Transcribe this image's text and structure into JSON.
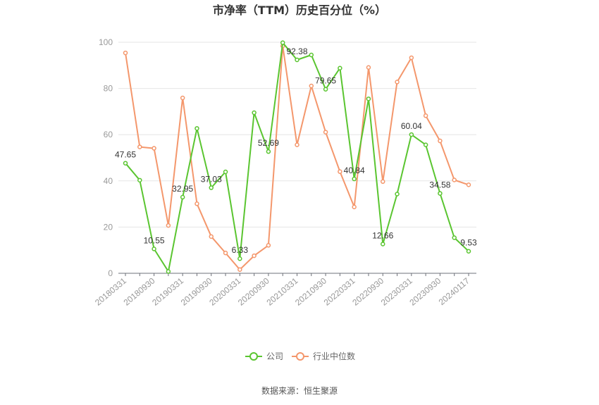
{
  "chart_data": {
    "type": "line",
    "title": "市净率（TTM）历史百分位（%）",
    "ylim": [
      0,
      100
    ],
    "yticks": [
      "0",
      "20",
      "40",
      "60",
      "80",
      "100"
    ],
    "grid": true,
    "legend_position": "bottom",
    "x": [
      "20180331",
      "20180630",
      "20180930",
      "20181231",
      "20190331",
      "20190630",
      "20190930",
      "20191231",
      "20200331",
      "20200630",
      "20200930",
      "20201231",
      "20210331",
      "20210630",
      "20210930",
      "20211231",
      "20220331",
      "20220630",
      "20220930",
      "20221231",
      "20230331",
      "20230630",
      "20230930",
      "20231231",
      "20240117"
    ],
    "x_tick_labels": [
      "20180331",
      "20180930",
      "20190331",
      "20190930",
      "20200331",
      "20200930",
      "20210331",
      "20210930",
      "20220331",
      "20220930",
      "20230331",
      "20230930",
      "20240117"
    ],
    "series": [
      {
        "name": "公司",
        "color": "#5ac530",
        "values": [
          47.65,
          40.3,
          10.55,
          0.8,
          32.95,
          62.7,
          37.03,
          43.9,
          6.33,
          69.5,
          52.69,
          99.8,
          92.38,
          94.5,
          79.65,
          88.8,
          40.84,
          75.5,
          12.66,
          34.3,
          60.04,
          55.6,
          34.58,
          15.4,
          9.53
        ],
        "labels": {
          "0": "47.65",
          "2": "10.55",
          "4": "32.95",
          "6": "37.03",
          "8": "6.33",
          "10": "52.69",
          "12": "92.38",
          "14": "79.65",
          "16": "40.84",
          "18": "12.66",
          "20": "60.04",
          "22": "34.58",
          "24": "9.53"
        }
      },
      {
        "name": "行业中位数",
        "color": "#f4976c",
        "values": [
          95.4,
          54.7,
          54.1,
          20.7,
          75.9,
          30.1,
          15.9,
          8.8,
          1.6,
          7.6,
          12.1,
          98.4,
          55.6,
          81.1,
          61.1,
          44.0,
          28.7,
          89.1,
          39.7,
          82.8,
          93.3,
          68.2,
          57.3,
          40.4,
          38.3
        ]
      }
    ]
  },
  "legend": {
    "company": "公司",
    "industry": "行业中位数"
  },
  "source": "数据来源：恒生聚源"
}
